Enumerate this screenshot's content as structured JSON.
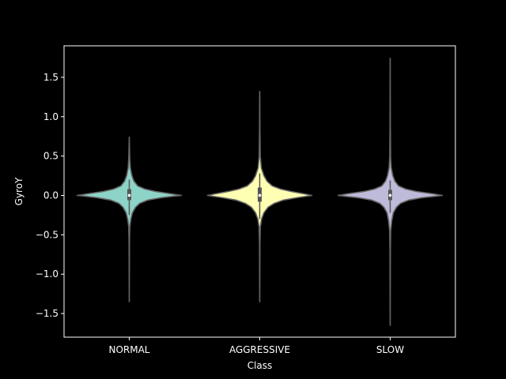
{
  "chart_data": {
    "type": "violin",
    "xlabel": "Class",
    "ylabel": "GyroY",
    "categories": [
      "NORMAL",
      "AGGRESSIVE",
      "SLOW"
    ],
    "ylim": [
      -1.8,
      1.9
    ],
    "yticks": [
      -1.5,
      -1.0,
      -0.5,
      0.0,
      0.5,
      1.0,
      1.5
    ],
    "ytick_labels": [
      "−1.5",
      "−1.0",
      "−0.5",
      "0.0",
      "0.5",
      "1.0",
      "1.5"
    ],
    "grid": false,
    "series": [
      {
        "category": "NORMAL",
        "color": "#8dd3c7",
        "min": -1.35,
        "max": 0.74,
        "q1": -0.06,
        "median": 0.0,
        "q3": 0.08,
        "whisker_low": -0.25,
        "whisker_high": 0.2,
        "density": [
          [
            -1.35,
            0.0
          ],
          [
            -0.6,
            0.004
          ],
          [
            -0.4,
            0.01
          ],
          [
            -0.3,
            0.03
          ],
          [
            -0.22,
            0.06
          ],
          [
            -0.15,
            0.12
          ],
          [
            -0.1,
            0.2
          ],
          [
            -0.06,
            0.35
          ],
          [
            -0.03,
            0.6
          ],
          [
            -0.01,
            0.85
          ],
          [
            0.0,
            1.0
          ],
          [
            0.02,
            0.8
          ],
          [
            0.05,
            0.5
          ],
          [
            0.08,
            0.3
          ],
          [
            0.12,
            0.16
          ],
          [
            0.18,
            0.09
          ],
          [
            0.25,
            0.05
          ],
          [
            0.35,
            0.02
          ],
          [
            0.5,
            0.008
          ],
          [
            0.74,
            0.0
          ]
        ]
      },
      {
        "category": "AGGRESSIVE",
        "color": "#ffffb3",
        "min": -1.35,
        "max": 1.32,
        "q1": -0.08,
        "median": 0.0,
        "q3": 0.1,
        "whisker_low": -0.3,
        "whisker_high": 0.28,
        "density": [
          [
            -1.35,
            0.0
          ],
          [
            -0.6,
            0.004
          ],
          [
            -0.4,
            0.012
          ],
          [
            -0.3,
            0.035
          ],
          [
            -0.22,
            0.08
          ],
          [
            -0.15,
            0.16
          ],
          [
            -0.1,
            0.28
          ],
          [
            -0.06,
            0.45
          ],
          [
            -0.03,
            0.7
          ],
          [
            -0.01,
            0.9
          ],
          [
            0.0,
            1.0
          ],
          [
            0.02,
            0.85
          ],
          [
            0.05,
            0.6
          ],
          [
            0.08,
            0.4
          ],
          [
            0.12,
            0.24
          ],
          [
            0.18,
            0.14
          ],
          [
            0.25,
            0.08
          ],
          [
            0.35,
            0.03
          ],
          [
            0.5,
            0.01
          ],
          [
            0.8,
            0.004
          ],
          [
            1.32,
            0.0
          ]
        ]
      },
      {
        "category": "SLOW",
        "color": "#bebada",
        "min": -1.65,
        "max": 1.74,
        "q1": -0.06,
        "median": 0.0,
        "q3": 0.07,
        "whisker_low": -0.22,
        "whisker_high": 0.19,
        "density": [
          [
            -1.65,
            0.0
          ],
          [
            -0.7,
            0.004
          ],
          [
            -0.45,
            0.01
          ],
          [
            -0.32,
            0.03
          ],
          [
            -0.22,
            0.06
          ],
          [
            -0.15,
            0.12
          ],
          [
            -0.1,
            0.2
          ],
          [
            -0.06,
            0.35
          ],
          [
            -0.03,
            0.6
          ],
          [
            -0.01,
            0.88
          ],
          [
            0.0,
            1.0
          ],
          [
            0.02,
            0.82
          ],
          [
            0.05,
            0.5
          ],
          [
            0.08,
            0.3
          ],
          [
            0.12,
            0.16
          ],
          [
            0.18,
            0.09
          ],
          [
            0.25,
            0.05
          ],
          [
            0.35,
            0.02
          ],
          [
            0.5,
            0.008
          ],
          [
            0.9,
            0.003
          ],
          [
            1.74,
            0.0
          ]
        ]
      }
    ]
  }
}
